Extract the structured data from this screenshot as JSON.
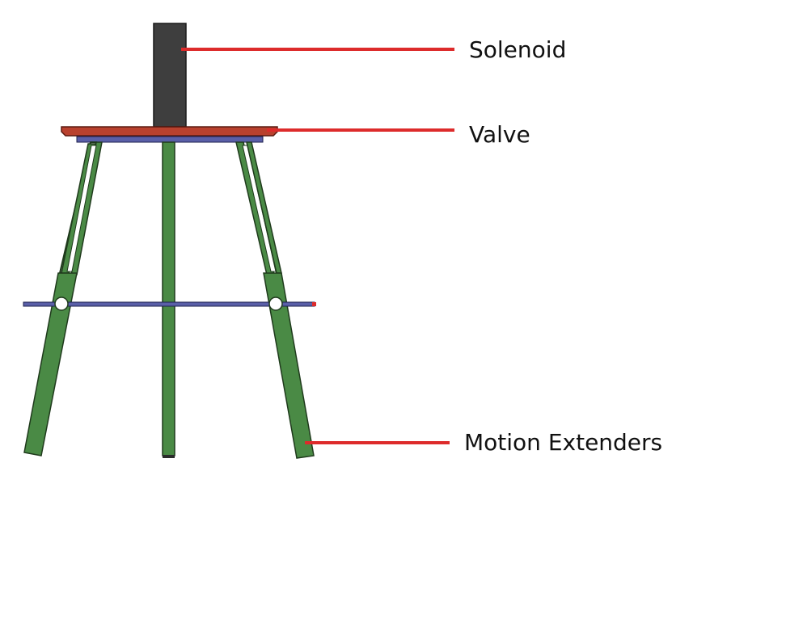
{
  "labels": {
    "solenoid": "Solenoid",
    "valve": "Valve",
    "motion_extenders": "Motion Extenders"
  },
  "colors": {
    "leader_line": "#dd2b2b",
    "solenoid_body": "#3e3e3e",
    "valve_plate": "#b9412e",
    "valve_base": "#3b3f86",
    "leg_fill": "#4a8a45",
    "leg_stroke": "#1f3a1c",
    "crossbar": "#3b3f86"
  }
}
